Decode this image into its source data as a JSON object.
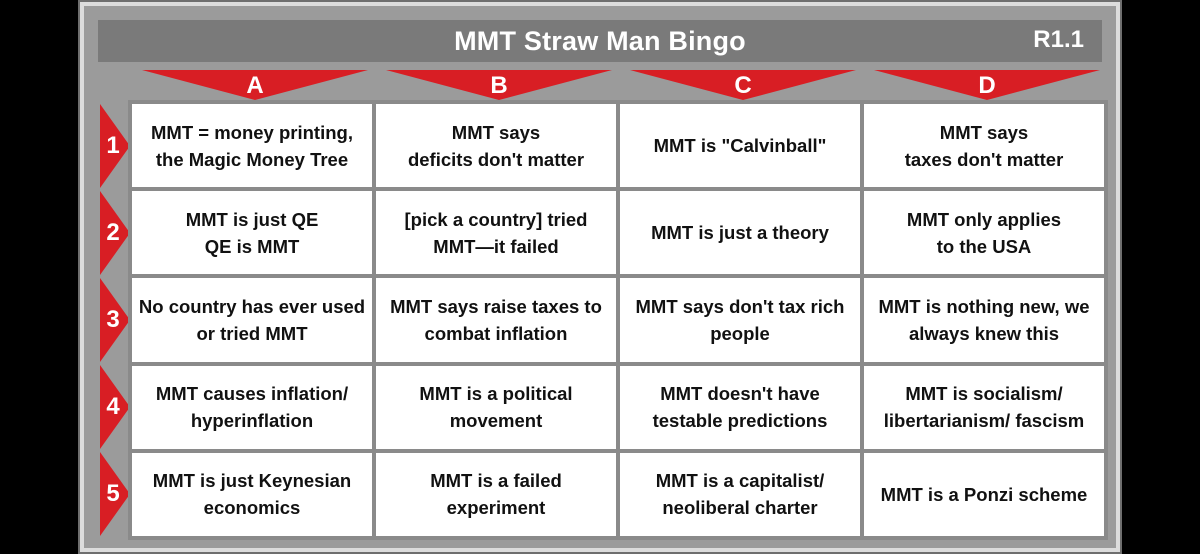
{
  "title": "MMT Straw Man Bingo",
  "version": "R1.1",
  "columns": [
    "A",
    "B",
    "C",
    "D"
  ],
  "rows": [
    "1",
    "2",
    "3",
    "4",
    "5"
  ],
  "colors": {
    "accent_red": "#d81e24",
    "frame_gray": "#9b9b9b",
    "title_bar": "#7a7a7a"
  },
  "cells": [
    [
      "MMT = money printing,\nthe Magic Money Tree",
      "MMT says\ndeficits don't matter",
      "MMT is \"Calvinball\"",
      "MMT says\ntaxes don't matter"
    ],
    [
      "MMT is just QE\nQE is MMT",
      "[pick a country] tried\nMMT—it failed",
      "MMT is just a theory",
      "MMT only applies\nto the USA"
    ],
    [
      "No country has ever used\nor tried MMT",
      "MMT says raise taxes to\ncombat inflation",
      "MMT says don't tax rich\npeople",
      "MMT is nothing new, we\nalways knew this"
    ],
    [
      "MMT causes inflation/\nhyperinflation",
      "MMT is a political\nmovement",
      "MMT doesn't have\ntestable predictions",
      "MMT is socialism/\nlibertarianism/ fascism"
    ],
    [
      "MMT is just Keynesian\neconomics",
      "MMT is a failed\nexperiment",
      "MMT is a capitalist/\nneoliberal charter",
      "MMT is a Ponzi scheme"
    ]
  ]
}
